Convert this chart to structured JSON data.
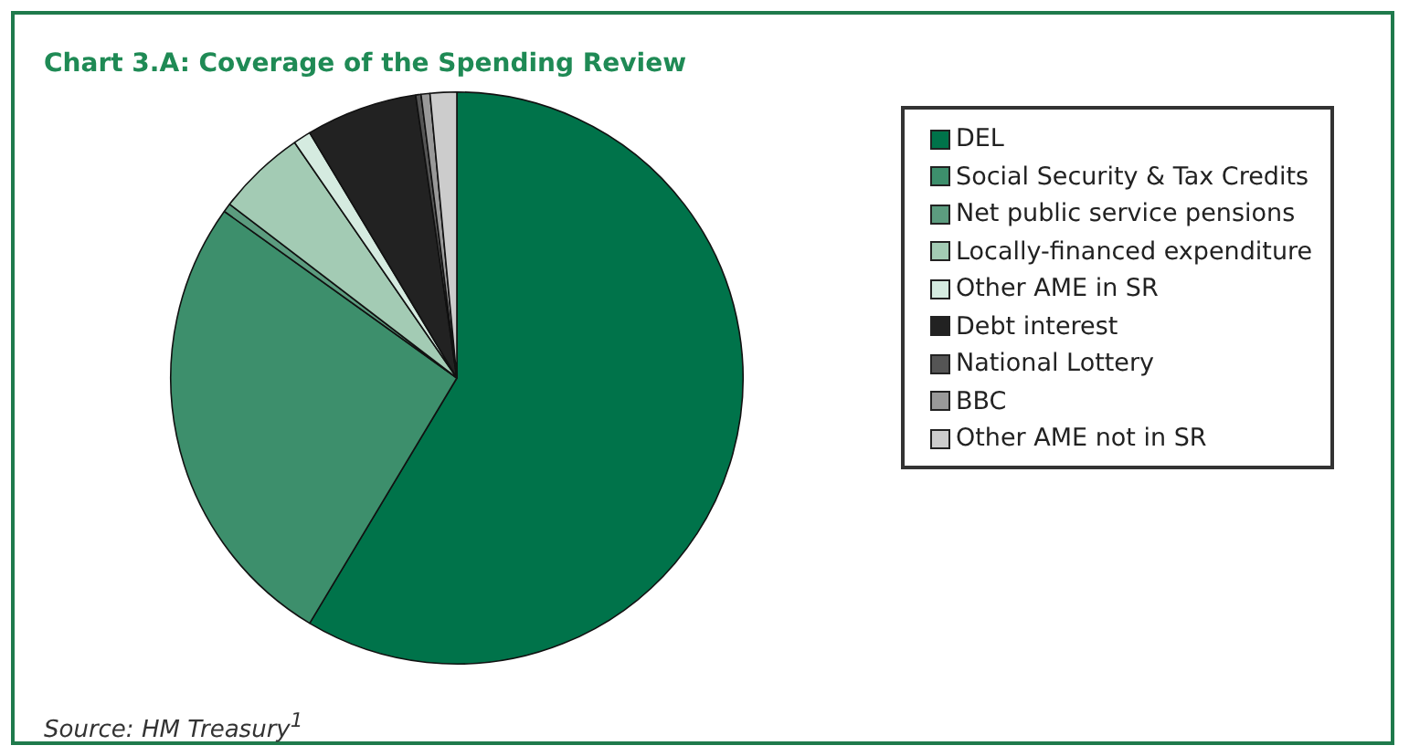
{
  "chart_data": {
    "type": "pie",
    "title": "Chart 3.A: Coverage of the Spending Review",
    "categories": [
      "DEL",
      "Social Security & Tax Credits",
      "Net public service pensions",
      "Locally-financed expenditure",
      "Other AME in SR",
      "Debt interest",
      "National Lottery",
      "BBC",
      "Other AME not in SR"
    ],
    "values": [
      58.6,
      26.3,
      0.5,
      5,
      1,
      6.3,
      0.3,
      0.5,
      1.5
    ],
    "colors": [
      "#00734a",
      "#3d8f6c",
      "#5c9c7f",
      "#a3cbb4",
      "#d5ebe0",
      "#222222",
      "#555555",
      "#999999",
      "#cccccc"
    ],
    "legend": "right",
    "annotations": [
      "Source: HM Treasury$^{1}$"
    ]
  }
}
